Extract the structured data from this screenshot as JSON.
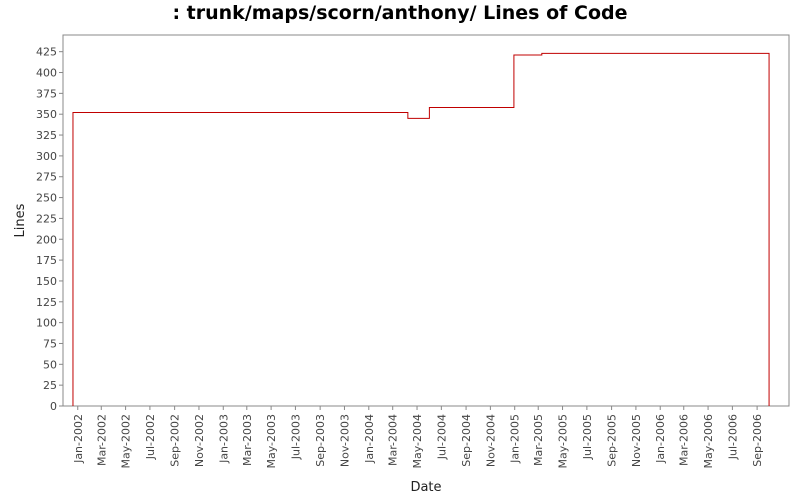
{
  "chart_data": {
    "type": "line",
    "step": true,
    "title": ": trunk/maps/scorn/anthony/ Lines of Code",
    "xlabel": "Date",
    "ylabel": "Lines",
    "ylim": [
      0,
      445
    ],
    "xlim": [
      "2001-11-25",
      "2006-11-20"
    ],
    "y_ticks": [
      0,
      25,
      50,
      75,
      100,
      125,
      150,
      175,
      200,
      225,
      250,
      275,
      300,
      325,
      350,
      375,
      400,
      425
    ],
    "x_ticks": [
      {
        "date": "2002-01-01",
        "label": "Jan-2002"
      },
      {
        "date": "2002-03-01",
        "label": "Mar-2002"
      },
      {
        "date": "2002-05-01",
        "label": "May-2002"
      },
      {
        "date": "2002-07-01",
        "label": "Jul-2002"
      },
      {
        "date": "2002-09-01",
        "label": "Sep-2002"
      },
      {
        "date": "2002-11-01",
        "label": "Nov-2002"
      },
      {
        "date": "2003-01-01",
        "label": "Jan-2003"
      },
      {
        "date": "2003-03-01",
        "label": "Mar-2003"
      },
      {
        "date": "2003-05-01",
        "label": "May-2003"
      },
      {
        "date": "2003-07-01",
        "label": "Jul-2003"
      },
      {
        "date": "2003-09-01",
        "label": "Sep-2003"
      },
      {
        "date": "2003-11-01",
        "label": "Nov-2003"
      },
      {
        "date": "2004-01-01",
        "label": "Jan-2004"
      },
      {
        "date": "2004-03-01",
        "label": "Mar-2004"
      },
      {
        "date": "2004-05-01",
        "label": "May-2004"
      },
      {
        "date": "2004-07-01",
        "label": "Jul-2004"
      },
      {
        "date": "2004-09-01",
        "label": "Sep-2004"
      },
      {
        "date": "2004-11-01",
        "label": "Nov-2004"
      },
      {
        "date": "2005-01-01",
        "label": "Jan-2005"
      },
      {
        "date": "2005-03-01",
        "label": "Mar-2005"
      },
      {
        "date": "2005-05-01",
        "label": "May-2005"
      },
      {
        "date": "2005-07-01",
        "label": "Jul-2005"
      },
      {
        "date": "2005-09-01",
        "label": "Sep-2005"
      },
      {
        "date": "2005-11-01",
        "label": "Nov-2005"
      },
      {
        "date": "2006-01-01",
        "label": "Jan-2006"
      },
      {
        "date": "2006-03-01",
        "label": "Mar-2006"
      },
      {
        "date": "2006-05-01",
        "label": "May-2006"
      },
      {
        "date": "2006-07-01",
        "label": "Jul-2006"
      },
      {
        "date": "2006-09-01",
        "label": "Sep-2006"
      }
    ],
    "series": [
      {
        "color": "#c00000",
        "points": [
          {
            "x": "2001-12-20",
            "y": 0
          },
          {
            "x": "2001-12-20",
            "y": 352
          },
          {
            "x": "2004-04-08",
            "y": 345
          },
          {
            "x": "2004-06-01",
            "y": 358
          },
          {
            "x": "2004-12-30",
            "y": 421
          },
          {
            "x": "2005-03-10",
            "y": 423
          },
          {
            "x": "2006-10-01",
            "y": 0
          }
        ]
      }
    ],
    "grid": false,
    "legend": "none",
    "plot_background": "#ffffff",
    "frame_color": "#888888"
  }
}
